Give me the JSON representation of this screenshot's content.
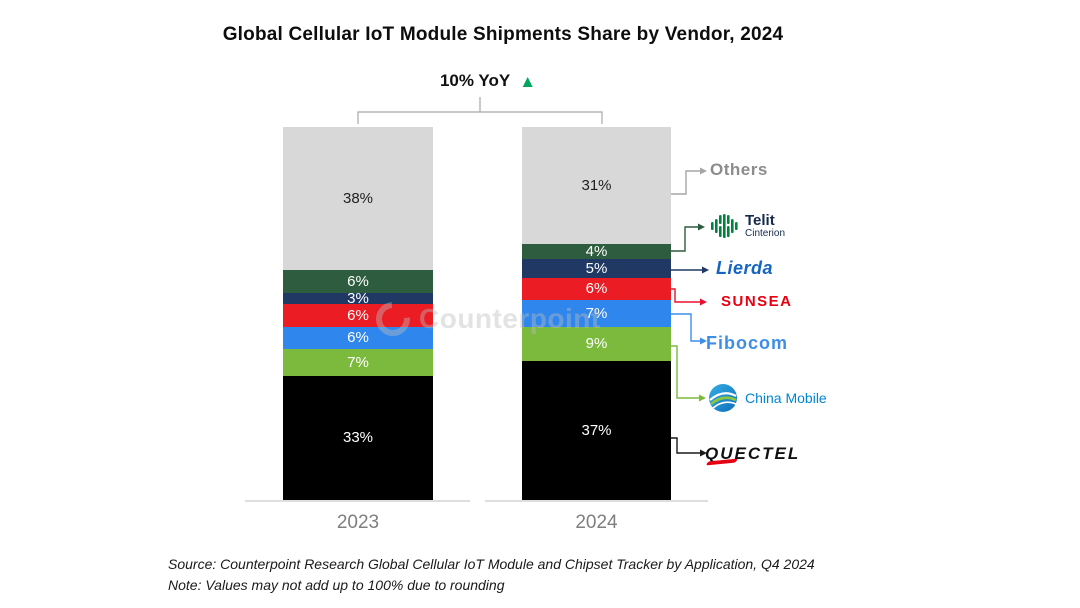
{
  "title": "Global Cellular IoT Module Shipments Share by Vendor,  2024",
  "annotation": {
    "text": "10% YoY",
    "arrow_glyph": "▲",
    "arrow_color": "#00A75D"
  },
  "watermark": {
    "text": "Counterpoint"
  },
  "chart_data": {
    "type": "bar",
    "subtype": "stacked-percent",
    "title": "Global Cellular IoT Module Shipments Share by Vendor, 2024",
    "categories": [
      "2023",
      "2024"
    ],
    "value_suffix": "%",
    "legend_position": "right",
    "series": [
      {
        "name": "Others",
        "color": "#D8D8D8",
        "label_color": "#1F1F1F",
        "values": [
          38,
          31
        ]
      },
      {
        "name": "Telit Cinterion",
        "color": "#2E5C3E",
        "label_color": "#FFFFFF",
        "values": [
          6,
          4
        ]
      },
      {
        "name": "Lierda",
        "color": "#1F3864",
        "label_color": "#FFFFFF",
        "values": [
          3,
          5
        ]
      },
      {
        "name": "SUNSEA",
        "color": "#EB1C24",
        "label_color": "#FFFFFF",
        "values": [
          6,
          6
        ]
      },
      {
        "name": "Fibocom",
        "color": "#2F86EC",
        "label_color": "#FFFFFF",
        "values": [
          6,
          7
        ]
      },
      {
        "name": "China Mobile",
        "color": "#7CBA3E",
        "label_color": "#FFFFFF",
        "values": [
          7,
          9
        ]
      },
      {
        "name": "Quectel",
        "color": "#000000",
        "label_color": "#FFFFFF",
        "values": [
          33,
          37
        ]
      }
    ],
    "yoy_annotation": "10% YoY up"
  },
  "legend": {
    "items": [
      {
        "id": "others",
        "label": "Others",
        "arrow_color": "#A6A6A6",
        "text_color": "#8C8C8C"
      },
      {
        "id": "telit",
        "label": "Telit",
        "sublabel": "Cinterion",
        "arrow_color": "#2E5C3E",
        "text_color": "#16294C",
        "icon_color": "#00843D"
      },
      {
        "id": "lierda",
        "label": "Lierda",
        "arrow_color": "#1F3864",
        "text_color": "#1565C0"
      },
      {
        "id": "sunsea",
        "label": "SUNSEA",
        "arrow_color": "#E8112D",
        "text_color": "#E60012"
      },
      {
        "id": "fibocom",
        "label": "Fibocom",
        "arrow_color": "#3E8EE8",
        "text_color": "#3E8EE8"
      },
      {
        "id": "china-mobile",
        "label": "China Mobile",
        "arrow_color": "#7CBA3E",
        "text_color": "#0086D4"
      },
      {
        "id": "quectel",
        "label": "QUECTEL",
        "arrow_color": "#1A1A1A",
        "text_color": "#111111"
      }
    ]
  },
  "footer": {
    "source": "Source: Counterpoint Research Global Cellular IoT Module and Chipset Tracker by Application,  Q4 2024",
    "note": "Note: Values may not add up to 100% due to rounding"
  }
}
